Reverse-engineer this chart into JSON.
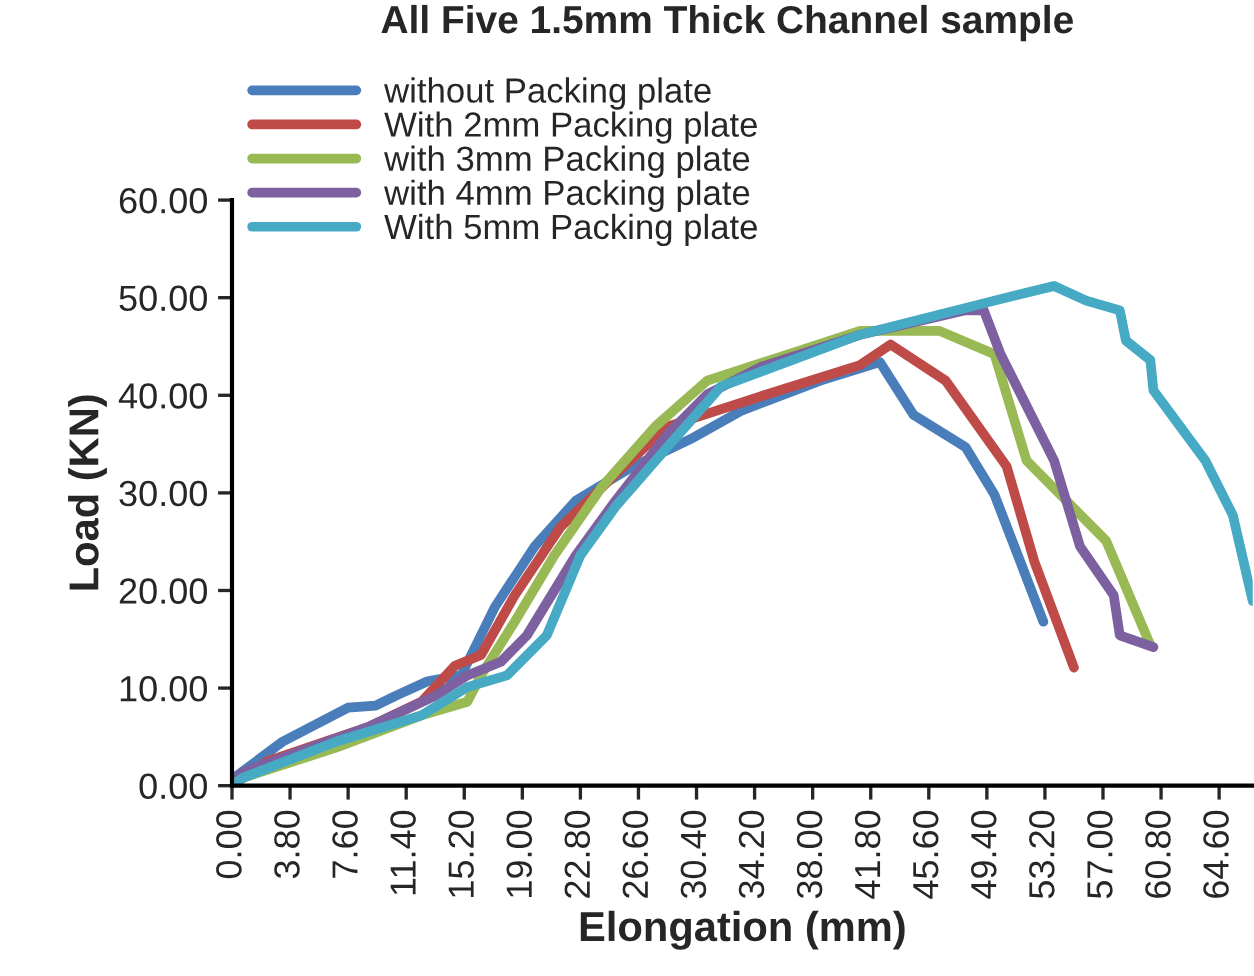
{
  "chart_data": {
    "type": "line",
    "title": "All Five 1.5mm Thick Channel sample",
    "xlabel": "Elongation (mm)",
    "ylabel": "Load (KN)",
    "xlim": [
      0,
      66.8
    ],
    "ylim": [
      0,
      60
    ],
    "xticks": [
      {
        "value": 0,
        "label": "0.00"
      },
      {
        "value": 3.8,
        "label": "3.80"
      },
      {
        "value": 7.6,
        "label": "7.60"
      },
      {
        "value": 11.4,
        "label": "11.40"
      },
      {
        "value": 15.2,
        "label": "15.20"
      },
      {
        "value": 19,
        "label": "19.00"
      },
      {
        "value": 22.8,
        "label": "22.80"
      },
      {
        "value": 26.6,
        "label": "26.60"
      },
      {
        "value": 30.4,
        "label": "30.40"
      },
      {
        "value": 34.2,
        "label": "34.20"
      },
      {
        "value": 38,
        "label": "38.00"
      },
      {
        "value": 41.8,
        "label": "41.80"
      },
      {
        "value": 45.6,
        "label": "45.60"
      },
      {
        "value": 49.4,
        "label": "49.40"
      },
      {
        "value": 53.2,
        "label": "53.20"
      },
      {
        "value": 57,
        "label": "57.00"
      },
      {
        "value": 60.8,
        "label": "60.80"
      },
      {
        "value": 64.6,
        "label": "64.60"
      }
    ],
    "yticks": [
      {
        "value": 0,
        "label": "0.00"
      },
      {
        "value": 10,
        "label": "10.00"
      },
      {
        "value": 20,
        "label": "20.00"
      },
      {
        "value": 30,
        "label": "30.00"
      },
      {
        "value": 40,
        "label": "40.00"
      },
      {
        "value": 50,
        "label": "50.00"
      },
      {
        "value": 60,
        "label": "60.00"
      }
    ],
    "grid": false,
    "legend": "top left",
    "marker": "none",
    "line_style": "solid",
    "series": [
      {
        "name": "without Packing plate",
        "color": "#4a7ebb",
        "x": [
          0,
          0.3,
          3.3,
          7.6,
          9.4,
          10.7,
          12.8,
          15,
          17.2,
          19.8,
          22.5,
          26,
          30,
          33.3,
          38.5,
          42.4,
          44.6,
          48,
          49.9,
          53.1
        ],
        "values": [
          0,
          1,
          4.5,
          8,
          8.2,
          9.2,
          10.7,
          11.3,
          18.3,
          24.5,
          29.2,
          32.5,
          35.5,
          38.4,
          41.5,
          43.4,
          38,
          34.7,
          29.8,
          16.8
        ]
      },
      {
        "name": "With 2mm Packing plate",
        "color": "#be4b48",
        "x": [
          0,
          2.3,
          8.9,
          12.4,
          14.6,
          16.3,
          18.5,
          21.5,
          25.1,
          28.5,
          34.6,
          41.1,
          43.1,
          46.7,
          50.7,
          52.5,
          55.1
        ],
        "values": [
          0,
          2.5,
          6,
          8.6,
          12.3,
          13.4,
          19.5,
          26.5,
          31.9,
          36.8,
          39.9,
          43.1,
          45.2,
          41.5,
          32.7,
          23,
          12.1
        ]
      },
      {
        "name": "with 3mm Packing plate",
        "color": "#98b954",
        "x": [
          0,
          0.7,
          6.8,
          12.4,
          15.4,
          16.3,
          18.5,
          21.1,
          24.2,
          27.7,
          31.1,
          37.2,
          41.1,
          46.3,
          49.9,
          52,
          57.2,
          60.1
        ],
        "values": [
          0,
          0.8,
          3.9,
          7.2,
          8.6,
          11.3,
          16.8,
          23.6,
          30.6,
          36.8,
          41.5,
          44.6,
          46.6,
          46.6,
          44.2,
          33.3,
          25.1,
          14.4
        ]
      },
      {
        "name": "with 4mm Packing plate",
        "color": "#7d60a0",
        "x": [
          0,
          0.7,
          8.9,
          13.3,
          15.4,
          17.6,
          19.3,
          22.5,
          25.1,
          28.5,
          31.1,
          34.6,
          41.1,
          48,
          49.2,
          50.3,
          53.8,
          55.5,
          57.7,
          58.1,
          60.3
        ],
        "values": [
          0,
          1.4,
          6,
          9.2,
          11.3,
          12.7,
          15.4,
          23.6,
          29.2,
          36,
          40.1,
          42.9,
          46.2,
          48.7,
          48.7,
          44.2,
          33.3,
          24.5,
          19.5,
          15.4,
          14.2
        ]
      },
      {
        "name": "With 5mm Packing plate",
        "color": "#46aac5",
        "x": [
          0,
          0.7,
          6.8,
          12.4,
          15.4,
          18,
          20.6,
          22.8,
          25.1,
          28.5,
          32,
          41.1,
          49.9,
          53.8,
          55.9,
          58.1,
          58.5,
          60.1,
          60.3,
          63.7,
          65.5,
          66.8
        ],
        "values": [
          0,
          0.8,
          4.5,
          7.2,
          10.1,
          11.3,
          15.4,
          23.6,
          28.6,
          34.7,
          40.9,
          46.2,
          49.7,
          51.2,
          49.7,
          48.7,
          45.6,
          43.6,
          40.5,
          33.3,
          27.7,
          18.9
        ]
      }
    ]
  }
}
